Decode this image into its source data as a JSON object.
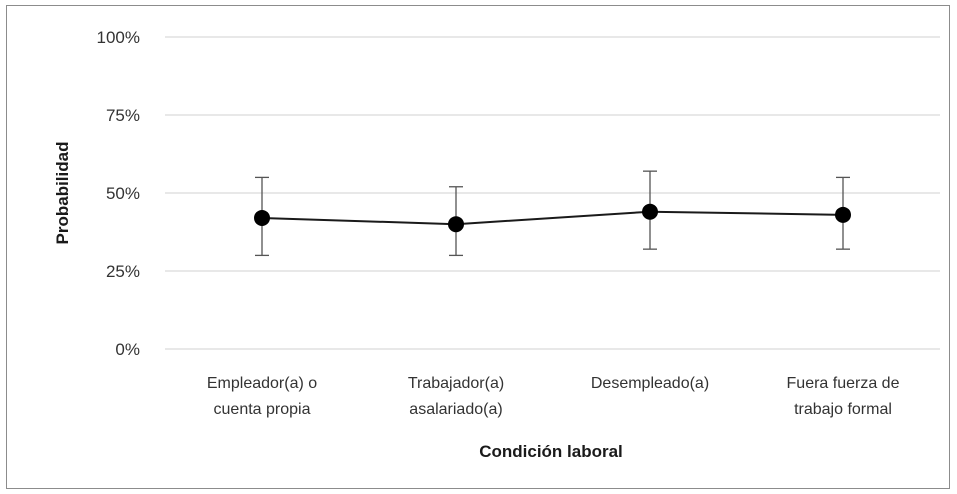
{
  "colors": {
    "line": "#1a1a1a",
    "marker": "#000000",
    "error_bar": "#555555",
    "grid": "#d0d0d0",
    "border": "#8c8c8c"
  },
  "chart_data": {
    "type": "line",
    "title": "",
    "xlabel": "Condición laboral",
    "ylabel": "Probabilidad",
    "categories": [
      [
        "Empleador(a) o",
        "cuenta propia"
      ],
      [
        "Trabajador(a)",
        "asalariado(a)"
      ],
      [
        "Desempleado(a)"
      ],
      [
        "Fuera fuerza de",
        "trabajo formal"
      ]
    ],
    "yticks": [
      "0%",
      "25%",
      "50%",
      "75%",
      "100%"
    ],
    "ylim": [
      0,
      100
    ],
    "grid": true,
    "legend": "none",
    "series": [
      {
        "values": [
          42,
          40,
          44,
          43
        ],
        "error_low": [
          30,
          30,
          32,
          32
        ],
        "error_high": [
          55,
          52,
          57,
          55
        ]
      }
    ]
  }
}
